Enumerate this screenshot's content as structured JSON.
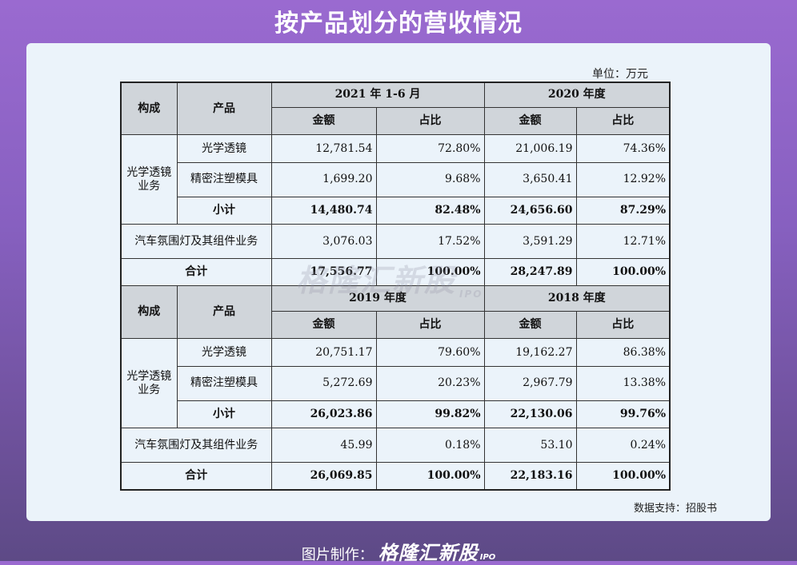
{
  "title": "按产品划分的营收情况",
  "unit": "单位：万元",
  "source": "数据支持：招股书",
  "watermark": {
    "brand": "格隆汇新股",
    "suffix": "IPO"
  },
  "footer": {
    "label": "图片制作：",
    "brand": "格隆汇新股",
    "suffix": "IPO"
  },
  "headers": {
    "category": "构成",
    "product": "产品",
    "amount": "金额",
    "share": "占比"
  },
  "blocks": [
    {
      "periods": [
        "2021 年 1-6 月",
        "2020 年度"
      ],
      "group": "光学透镜业务",
      "rows": {
        "optical_lens": {
          "label": "光学透镜",
          "values": [
            "12,781.54",
            "72.80%",
            "21,006.19",
            "74.36%"
          ]
        },
        "precision_mold": {
          "label": "精密注塑模具",
          "values": [
            "1,699.20",
            "9.68%",
            "3,650.41",
            "12.92%"
          ]
        },
        "subtotal": {
          "label": "小计",
          "values": [
            "14,480.74",
            "82.48%",
            "24,656.60",
            "87.29%"
          ]
        },
        "auto_lighting": {
          "label": "汽车氛围灯及其组件业务",
          "values": [
            "3,076.03",
            "17.52%",
            "3,591.29",
            "12.71%"
          ]
        },
        "total": {
          "label": "合计",
          "values": [
            "17,556.77",
            "100.00%",
            "28,247.89",
            "100.00%"
          ]
        }
      }
    },
    {
      "periods": [
        "2019 年度",
        "2018 年度"
      ],
      "group": "光学透镜业务",
      "rows": {
        "optical_lens": {
          "label": "光学透镜",
          "values": [
            "20,751.17",
            "79.60%",
            "19,162.27",
            "86.38%"
          ]
        },
        "precision_mold": {
          "label": "精密注塑模具",
          "values": [
            "5,272.69",
            "20.23%",
            "2,967.79",
            "13.38%"
          ]
        },
        "subtotal": {
          "label": "小计",
          "values": [
            "26,023.86",
            "99.82%",
            "22,130.06",
            "99.76%"
          ]
        },
        "auto_lighting": {
          "label": "汽车氛围灯及其组件业务",
          "values": [
            "45.99",
            "0.18%",
            "53.10",
            "0.24%"
          ]
        },
        "total": {
          "label": "合计",
          "values": [
            "26,069.85",
            "100.00%",
            "22,183.16",
            "100.00%"
          ]
        }
      }
    }
  ]
}
